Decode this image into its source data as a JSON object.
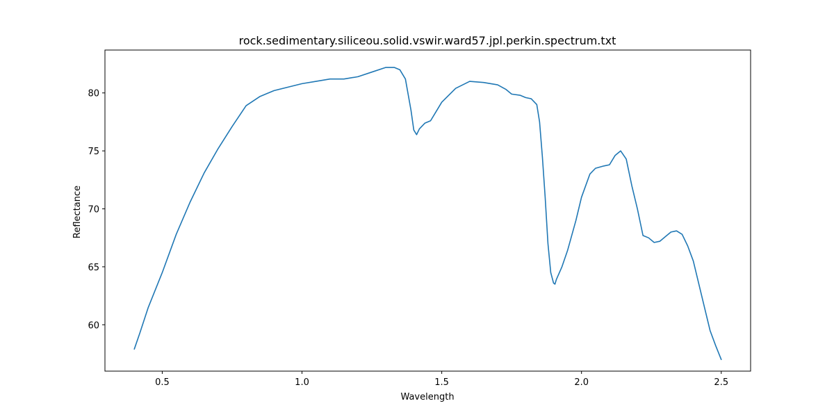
{
  "chart_data": {
    "type": "line",
    "title": "rock.sedimentary.siliceou.solid.vswir.ward57.jpl.perkin.spectrum.txt",
    "xlabel": "Wavelength",
    "ylabel": "Reflectance",
    "xlim": [
      0.295,
      2.605
    ],
    "ylim": [
      56.0,
      83.7
    ],
    "xticks": [
      0.5,
      1.0,
      1.5,
      2.0,
      2.5
    ],
    "xtick_labels": [
      "0.5",
      "1.0",
      "1.5",
      "2.0",
      "2.5"
    ],
    "yticks": [
      60,
      65,
      70,
      75,
      80
    ],
    "ytick_labels": [
      "60",
      "65",
      "70",
      "75",
      "80"
    ],
    "grid": false,
    "series": [
      {
        "color": "#1f77b4",
        "x": [
          0.4,
          0.42,
          0.45,
          0.5,
          0.55,
          0.6,
          0.65,
          0.7,
          0.75,
          0.8,
          0.85,
          0.9,
          0.95,
          1.0,
          1.05,
          1.1,
          1.15,
          1.2,
          1.25,
          1.3,
          1.33,
          1.35,
          1.37,
          1.39,
          1.4,
          1.41,
          1.42,
          1.44,
          1.46,
          1.48,
          1.5,
          1.55,
          1.6,
          1.65,
          1.7,
          1.73,
          1.75,
          1.78,
          1.8,
          1.82,
          1.84,
          1.85,
          1.86,
          1.87,
          1.88,
          1.89,
          1.9,
          1.905,
          1.91,
          1.93,
          1.95,
          1.98,
          2.0,
          2.03,
          2.05,
          2.08,
          2.1,
          2.12,
          2.14,
          2.16,
          2.18,
          2.2,
          2.22,
          2.24,
          2.26,
          2.28,
          2.3,
          2.32,
          2.34,
          2.36,
          2.38,
          2.4,
          2.42,
          2.44,
          2.46,
          2.48,
          2.5
        ],
        "y": [
          57.9,
          59.3,
          61.5,
          64.5,
          67.8,
          70.6,
          73.1,
          75.2,
          77.1,
          78.9,
          79.7,
          80.2,
          80.5,
          80.8,
          81.0,
          81.2,
          81.2,
          81.4,
          81.8,
          82.2,
          82.2,
          82.0,
          81.2,
          78.5,
          76.8,
          76.4,
          76.9,
          77.4,
          77.6,
          78.4,
          79.2,
          80.4,
          81.0,
          80.9,
          80.7,
          80.3,
          79.9,
          79.8,
          79.6,
          79.5,
          79.0,
          77.5,
          74.5,
          71.0,
          67.0,
          64.5,
          63.6,
          63.5,
          63.9,
          65.0,
          66.4,
          69.0,
          71.0,
          73.0,
          73.5,
          73.7,
          73.8,
          74.6,
          75.0,
          74.3,
          72.0,
          70.0,
          67.7,
          67.5,
          67.1,
          67.2,
          67.6,
          68.0,
          68.1,
          67.8,
          66.8,
          65.5,
          63.5,
          61.5,
          59.5,
          58.2,
          57.0
        ]
      }
    ]
  }
}
